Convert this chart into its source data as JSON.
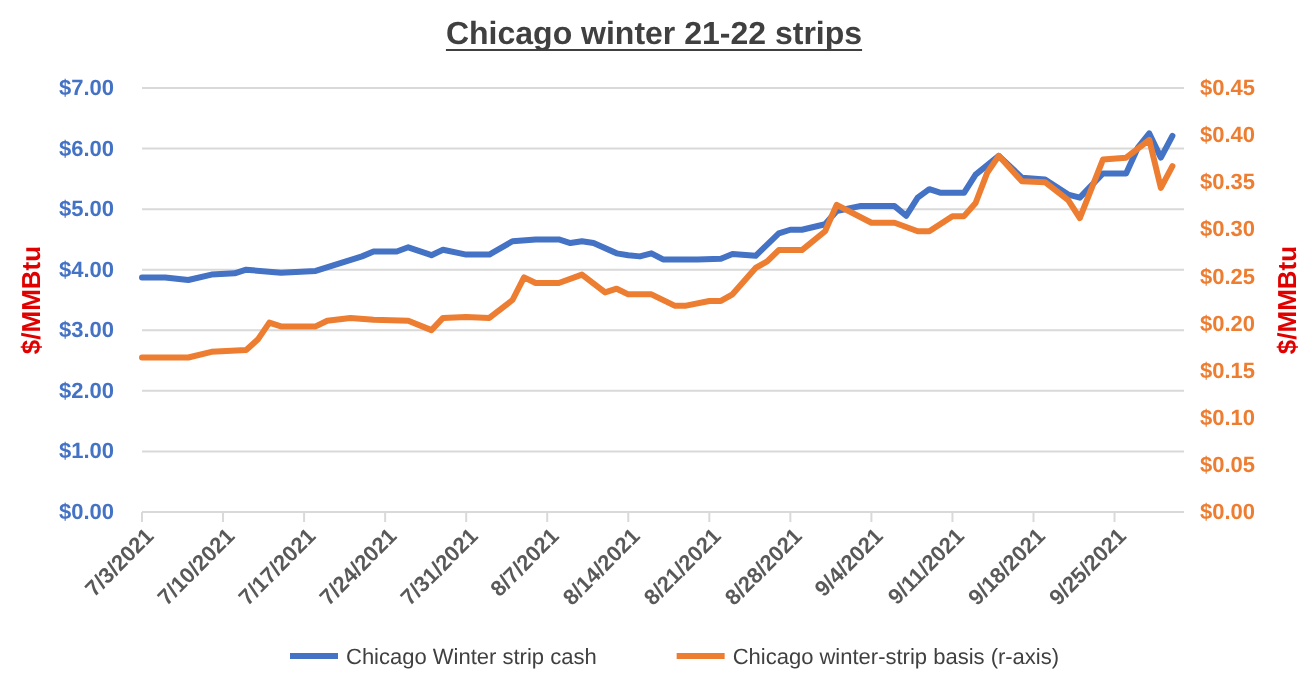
{
  "chart_data": {
    "type": "line",
    "title": "Chicago winter 21-22 strips",
    "ylabel": "$/MMBtu",
    "y2label": "$/MMBtu",
    "grid": "y",
    "legend": "bottom",
    "line_style": "solid",
    "marker": "none",
    "xlim": [
      "2021-07-03",
      "2021-10-01"
    ],
    "xticks": [
      {
        "value": "2021-07-03",
        "label": "7/3/2021"
      },
      {
        "value": "2021-07-10",
        "label": "7/10/2021"
      },
      {
        "value": "2021-07-17",
        "label": "7/17/2021"
      },
      {
        "value": "2021-07-24",
        "label": "7/24/2021"
      },
      {
        "value": "2021-07-31",
        "label": "7/31/2021"
      },
      {
        "value": "2021-08-07",
        "label": "8/7/2021"
      },
      {
        "value": "2021-08-14",
        "label": "8/14/2021"
      },
      {
        "value": "2021-08-21",
        "label": "8/21/2021"
      },
      {
        "value": "2021-08-28",
        "label": "8/28/2021"
      },
      {
        "value": "2021-09-04",
        "label": "9/4/2021"
      },
      {
        "value": "2021-09-11",
        "label": "9/11/2021"
      },
      {
        "value": "2021-09-18",
        "label": "9/18/2021"
      },
      {
        "value": "2021-09-25",
        "label": "9/25/2021"
      }
    ],
    "ylim": [
      0,
      7
    ],
    "yticks": [
      {
        "value": 0,
        "label": "$0.00"
      },
      {
        "value": 1,
        "label": "$1.00"
      },
      {
        "value": 2,
        "label": "$2.00"
      },
      {
        "value": 3,
        "label": "$3.00"
      },
      {
        "value": 4,
        "label": "$4.00"
      },
      {
        "value": 5,
        "label": "$5.00"
      },
      {
        "value": 6,
        "label": "$6.00"
      },
      {
        "value": 7,
        "label": "$7.00"
      }
    ],
    "y2lim": [
      0,
      0.45
    ],
    "y2ticks": [
      {
        "value": 0,
        "label": "$0.00"
      },
      {
        "value": 0.05,
        "label": "$0.05"
      },
      {
        "value": 0.1,
        "label": "$0.10"
      },
      {
        "value": 0.15,
        "label": "$0.15"
      },
      {
        "value": 0.2,
        "label": "$0.20"
      },
      {
        "value": 0.25,
        "label": "$0.25"
      },
      {
        "value": 0.3,
        "label": "$0.30"
      },
      {
        "value": 0.35,
        "label": "$0.35"
      },
      {
        "value": 0.4,
        "label": "$0.40"
      },
      {
        "value": 0.45,
        "label": "$0.45"
      }
    ],
    "series": [
      {
        "name": "Chicago Winter strip cash",
        "color": "#4472c4",
        "x": [
          "2021-07-03",
          "2021-07-05",
          "2021-07-07",
          "2021-07-09",
          "2021-07-11",
          "2021-07-12",
          "2021-07-15",
          "2021-07-18",
          "2021-07-20",
          "2021-07-22",
          "2021-07-23",
          "2021-07-25",
          "2021-07-26",
          "2021-07-28",
          "2021-07-29",
          "2021-07-31",
          "2021-08-02",
          "2021-08-04",
          "2021-08-06",
          "2021-08-08",
          "2021-08-09",
          "2021-08-10",
          "2021-08-11",
          "2021-08-13",
          "2021-08-14",
          "2021-08-15",
          "2021-08-16",
          "2021-08-17",
          "2021-08-20",
          "2021-08-22",
          "2021-08-23",
          "2021-08-25",
          "2021-08-27",
          "2021-08-28",
          "2021-08-29",
          "2021-08-31",
          "2021-09-01",
          "2021-09-03",
          "2021-09-06",
          "2021-09-07",
          "2021-09-08",
          "2021-09-09",
          "2021-09-10",
          "2021-09-12",
          "2021-09-13",
          "2021-09-15",
          "2021-09-17",
          "2021-09-19",
          "2021-09-21",
          "2021-09-22",
          "2021-09-24",
          "2021-09-26",
          "2021-09-27",
          "2021-09-28",
          "2021-09-29",
          "2021-09-30"
        ],
        "values": [
          3.87,
          3.87,
          3.83,
          3.92,
          3.94,
          4.0,
          3.95,
          3.98,
          4.1,
          4.22,
          4.3,
          4.3,
          4.37,
          4.24,
          4.33,
          4.25,
          4.25,
          4.47,
          4.5,
          4.5,
          4.44,
          4.47,
          4.44,
          4.27,
          4.24,
          4.22,
          4.27,
          4.17,
          4.17,
          4.18,
          4.26,
          4.23,
          4.6,
          4.66,
          4.66,
          4.75,
          4.97,
          5.05,
          5.05,
          4.89,
          5.19,
          5.33,
          5.27,
          5.27,
          5.57,
          5.88,
          5.52,
          5.49,
          5.24,
          5.19,
          5.59,
          5.59,
          6.01,
          6.25,
          5.85,
          6.21
        ]
      },
      {
        "name": "Chicago winter-strip basis (r-axis)",
        "color": "#ed7d31",
        "axis": "y2",
        "x": [
          "2021-07-03",
          "2021-07-07",
          "2021-07-09",
          "2021-07-12",
          "2021-07-13",
          "2021-07-14",
          "2021-07-15",
          "2021-07-18",
          "2021-07-19",
          "2021-07-21",
          "2021-07-23",
          "2021-07-26",
          "2021-07-28",
          "2021-07-29",
          "2021-07-31",
          "2021-08-02",
          "2021-08-04",
          "2021-08-05",
          "2021-08-06",
          "2021-08-08",
          "2021-08-10",
          "2021-08-12",
          "2021-08-13",
          "2021-08-14",
          "2021-08-16",
          "2021-08-18",
          "2021-08-19",
          "2021-08-21",
          "2021-08-22",
          "2021-08-23",
          "2021-08-25",
          "2021-08-26",
          "2021-08-27",
          "2021-08-29",
          "2021-08-31",
          "2021-09-01",
          "2021-09-04",
          "2021-09-06",
          "2021-09-08",
          "2021-09-09",
          "2021-09-11",
          "2021-09-12",
          "2021-09-13",
          "2021-09-14",
          "2021-09-15",
          "2021-09-17",
          "2021-09-19",
          "2021-09-21",
          "2021-09-22",
          "2021-09-24",
          "2021-09-26",
          "2021-09-28",
          "2021-09-29",
          "2021-09-30"
        ],
        "values": [
          0.164,
          0.164,
          0.17,
          0.172,
          0.183,
          0.201,
          0.197,
          0.197,
          0.203,
          0.206,
          0.204,
          0.203,
          0.193,
          0.206,
          0.207,
          0.206,
          0.225,
          0.249,
          0.243,
          0.243,
          0.252,
          0.233,
          0.237,
          0.231,
          0.231,
          0.219,
          0.219,
          0.224,
          0.224,
          0.231,
          0.259,
          0.266,
          0.278,
          0.278,
          0.298,
          0.326,
          0.307,
          0.307,
          0.298,
          0.298,
          0.314,
          0.314,
          0.328,
          0.36,
          0.378,
          0.351,
          0.35,
          0.331,
          0.312,
          0.374,
          0.376,
          0.395,
          0.344,
          0.367
        ]
      }
    ]
  }
}
